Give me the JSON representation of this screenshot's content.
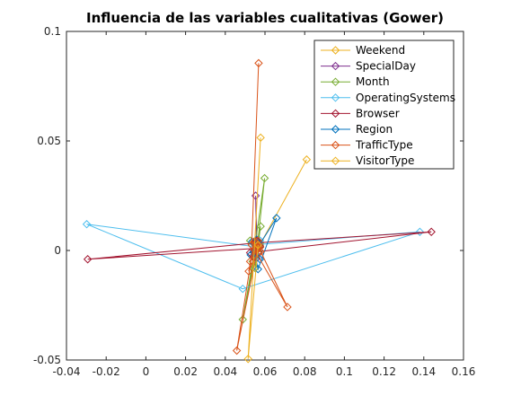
{
  "chart_data": {
    "type": "line",
    "title": "Influencia de las variables cualitativas (Gower)",
    "xlabel": "",
    "ylabel": "",
    "xlim": [
      -0.04,
      0.16
    ],
    "ylim": [
      -0.05,
      0.1
    ],
    "xticks": [
      -0.04,
      -0.02,
      0,
      0.02,
      0.04,
      0.06,
      0.08,
      0.1,
      0.12,
      0.14,
      0.16
    ],
    "xtick_labels": [
      "-0.04",
      "-0.02",
      "0",
      "0.02",
      "0.04",
      "0.06",
      "0.08",
      "0.1",
      "0.12",
      "0.14",
      "0.16"
    ],
    "yticks": [
      -0.05,
      0,
      0.05,
      0.1
    ],
    "ytick_labels": [
      "-0.05",
      "0",
      "0.05",
      "0.1"
    ],
    "grid": false,
    "legend_position": "top-right",
    "marker": "diamond",
    "series": [
      {
        "name": "Weekend",
        "color": "#EDB120",
        "points": [
          [
            0.0575,
            0.0027
          ],
          [
            0.081,
            0.0415
          ]
        ]
      },
      {
        "name": "SpecialDay",
        "color": "#7E2F8E",
        "points": [
          [
            0.056,
            0.002
          ],
          [
            0.0553,
            0.025
          ],
          [
            0.0558,
            -0.0035
          ],
          [
            0.0565,
            0.004
          ],
          [
            0.0545,
            0.0
          ]
        ]
      },
      {
        "name": "Month",
        "color": "#77AC30",
        "points": [
          [
            0.056,
            0.001
          ],
          [
            0.0598,
            0.033
          ],
          [
            0.0538,
            -0.005
          ],
          [
            0.0488,
            -0.0315
          ],
          [
            0.0578,
            0.011
          ],
          [
            0.055,
            -0.008
          ],
          [
            0.0575,
            0.0035
          ],
          [
            0.0525,
            0.0045
          ],
          [
            0.0568,
            -0.0005
          ],
          [
            0.0558,
            0.0045
          ]
        ]
      },
      {
        "name": "OperatingSystems",
        "color": "#4DBEEE",
        "points": [
          [
            0.0565,
            0.0015
          ],
          [
            -0.0298,
            0.012
          ],
          [
            0.0488,
            -0.0175
          ],
          [
            0.138,
            0.0085
          ],
          [
            0.0535,
            0.0025
          ],
          [
            0.0545,
            -0.002
          ],
          [
            0.0575,
            0.0045
          ],
          [
            0.0555,
            0.0005
          ]
        ]
      },
      {
        "name": "Browser",
        "color": "#A2142F",
        "points": [
          [
            0.0555,
            0.001
          ],
          [
            -0.0293,
            -0.004
          ],
          [
            0.0558,
            0.0035
          ],
          [
            0.1438,
            0.0085
          ],
          [
            0.0525,
            -0.001
          ],
          [
            0.0558,
            0.0045
          ],
          [
            0.0545,
            -0.003
          ],
          [
            0.0575,
            0.002
          ],
          [
            0.0565,
            -0.001
          ],
          [
            0.0548,
            0.0035
          ]
        ]
      },
      {
        "name": "Region",
        "color": "#0072BD",
        "points": [
          [
            0.056,
            0.001
          ],
          [
            0.0658,
            0.0148
          ],
          [
            0.0565,
            -0.0085
          ],
          [
            0.0535,
            0.004
          ],
          [
            0.0575,
            -0.004
          ],
          [
            0.0528,
            -0.002
          ],
          [
            0.0558,
            0.005
          ],
          [
            0.0575,
            0.0015
          ],
          [
            0.0548,
            -0.001
          ]
        ]
      },
      {
        "name": "TrafficType",
        "color": "#D95319",
        "points": [
          [
            0.0568,
            0.0855
          ],
          [
            0.0533,
            0.0025
          ],
          [
            0.0713,
            -0.0258
          ],
          [
            0.0565,
            0.002
          ],
          [
            0.0458,
            -0.0457
          ],
          [
            0.0545,
            0.004
          ],
          [
            0.0518,
            -0.0095
          ],
          [
            0.0575,
            0.0015
          ],
          [
            0.0555,
            0.0035
          ],
          [
            0.0578,
            -0.0005
          ],
          [
            0.0545,
            0.0005
          ],
          [
            0.0565,
            0.0045
          ],
          [
            0.0525,
            -0.005
          ],
          [
            0.0568,
            0.001
          ]
        ]
      },
      {
        "name": "VisitorType",
        "color": "#EDB120",
        "points": [
          [
            0.0578,
            0.0515
          ],
          [
            0.0515,
            -0.0495
          ],
          [
            0.0565,
            0.0025
          ]
        ]
      }
    ]
  }
}
